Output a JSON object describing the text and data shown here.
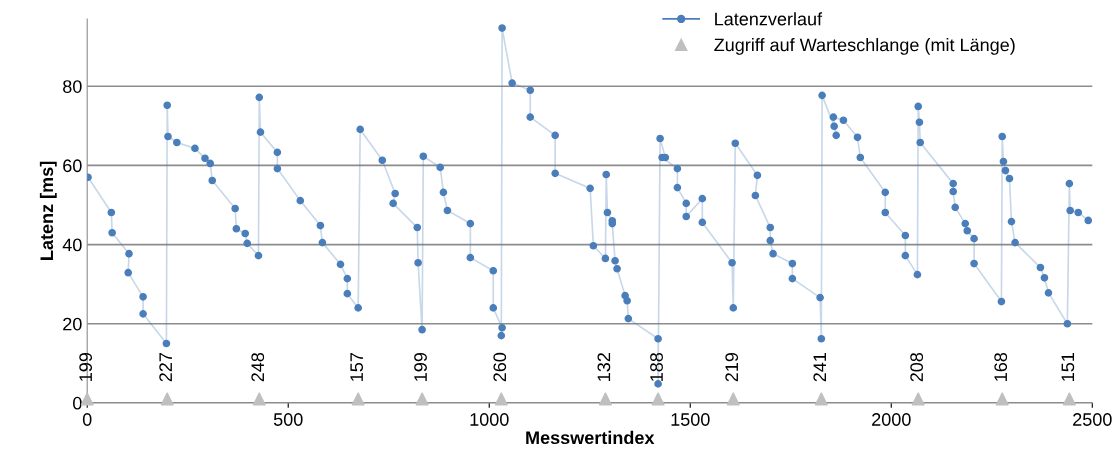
{
  "chart_data": {
    "type": "line",
    "xlabel": "Messwertindex",
    "ylabel": "Latenz [ms]",
    "xlim": [
      0,
      2500
    ],
    "xticks": [
      0,
      500,
      1000,
      1500,
      2000,
      2500
    ],
    "ylim": [
      0,
      97
    ],
    "yticks": [
      0,
      20,
      40,
      60,
      80
    ],
    "grid": "y",
    "legend": "top right",
    "series": [
      {
        "name": "Latenzverlauf",
        "color": "#4a7ebb",
        "marker": "circle",
        "line_style": "solid",
        "x": [
          2,
          60,
          62,
          104,
          102,
          139,
          139,
          197,
          199,
          201,
          223,
          268,
          293,
          306,
          311,
          368,
          371,
          393,
          398,
          426,
          428,
          431,
          473,
          473,
          530,
          580,
          585,
          630,
          647,
          647,
          674,
          679,
          734,
          766,
          761,
          821,
          823,
          833,
          836,
          878,
          886,
          896,
          953,
          953,
          1010,
          1010,
          1032,
          1030,
          1032,
          1057,
          1102,
          1102,
          1164,
          1164,
          1251,
          1259,
          1289,
          1291,
          1294,
          1306,
          1306,
          1313,
          1318,
          1338,
          1343,
          1346,
          1420,
          1420,
          1425,
          1438,
          1430,
          1468,
          1468,
          1490,
          1490,
          1530,
          1530,
          1604,
          1607,
          1612,
          1667,
          1662,
          1699,
          1699,
          1706,
          1754,
          1754,
          1823,
          1826,
          1828,
          1858,
          1863,
          1856,
          1881,
          1916,
          1923,
          1985,
          1985,
          2035,
          2035,
          2065,
          2067,
          2070,
          2072,
          2154,
          2154,
          2159,
          2184,
          2189,
          2206,
          2206,
          2274,
          2276,
          2279,
          2284,
          2294,
          2299,
          2308,
          2371,
          2381,
          2391,
          2438,
          2443,
          2445,
          2465,
          2490
        ],
        "values": [
          57,
          48.1,
          43,
          37.7,
          32.9,
          26.8,
          22.5,
          15,
          75.2,
          67.3,
          65.8,
          64.3,
          61.8,
          60.5,
          56.2,
          49.1,
          44,
          42.8,
          40.3,
          37.2,
          77.2,
          68.4,
          63.3,
          59.2,
          51.1,
          44.8,
          40.5,
          35,
          31.4,
          27.6,
          24,
          69.1,
          61.3,
          52.9,
          50.4,
          44.3,
          35.4,
          18.5,
          62.3,
          59.5,
          53.2,
          48.6,
          45.3,
          36.7,
          33.4,
          24,
          19,
          17,
          94.7,
          80.8,
          79,
          72.2,
          67.6,
          58,
          54.2,
          39.7,
          36.5,
          57.7,
          48.1,
          46,
          45.3,
          35.9,
          33.9,
          27.1,
          25.8,
          21.3,
          16.2,
          4.8,
          66.8,
          62,
          62,
          59.2,
          54.4,
          50.4,
          47.1,
          51.6,
          45.6,
          35.4,
          24,
          65.6,
          57.5,
          52.4,
          44.3,
          41,
          37.7,
          35.2,
          31.4,
          26.6,
          16.2,
          77.7,
          69.9,
          67.6,
          72.2,
          71.4,
          67.1,
          62,
          53.2,
          48.1,
          42.3,
          37.2,
          32.4,
          74.9,
          70.9,
          65.8,
          55.4,
          53.4,
          49.4,
          45.3,
          43.5,
          41.5,
          35.2,
          25.6,
          67.3,
          61,
          58.7,
          56.7,
          45.8,
          40.5,
          34.2,
          31.6,
          27.8,
          20,
          55.4,
          48.6,
          48.1,
          46.1
        ]
      },
      {
        "name": "Zugriff auf Warteschlange (mit Länge)",
        "type": "scatter",
        "color": "#bfbfbf",
        "marker": "triangle",
        "x": [
          0,
          199,
          428,
          674,
          833,
          1030,
          1289,
          1420,
          1607,
          1826,
          2067,
          2276,
          2443
        ],
        "values": [
          1,
          1,
          1,
          1,
          1,
          1,
          1,
          1,
          1,
          1,
          1,
          1,
          1
        ]
      }
    ],
    "annotations": [
      {
        "text": "199",
        "x": 0,
        "y": 1
      },
      {
        "text": "227",
        "x": 199,
        "y": 1
      },
      {
        "text": "248",
        "x": 428,
        "y": 1
      },
      {
        "text": "157",
        "x": 674,
        "y": 1
      },
      {
        "text": "199",
        "x": 833,
        "y": 1
      },
      {
        "text": "260",
        "x": 1030,
        "y": 1
      },
      {
        "text": "132",
        "x": 1289,
        "y": 1
      },
      {
        "text": "188",
        "x": 1420,
        "y": 1
      },
      {
        "text": "219",
        "x": 1607,
        "y": 1
      },
      {
        "text": "241",
        "x": 1826,
        "y": 1
      },
      {
        "text": "208",
        "x": 2067,
        "y": 1
      },
      {
        "text": "168",
        "x": 2276,
        "y": 1
      },
      {
        "text": "151",
        "x": 2443,
        "y": 1
      }
    ]
  }
}
